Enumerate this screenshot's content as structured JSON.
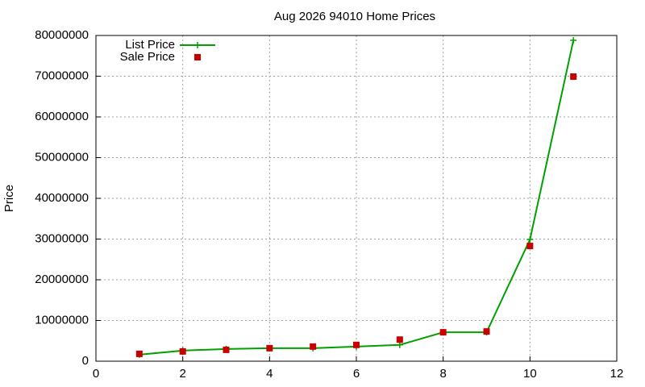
{
  "chart_data": {
    "type": "line",
    "title": "Aug 2026 94010 Home Prices",
    "y_label": "Price",
    "x": [
      1,
      2,
      3,
      4,
      5,
      6,
      7,
      8,
      9,
      10,
      11
    ],
    "series": [
      {
        "name": "List Price",
        "color": "#00a000",
        "style": "linespoints",
        "values": [
          1600000,
          2600000,
          3000000,
          3200000,
          3200000,
          3600000,
          4000000,
          7100000,
          7100000,
          29900000,
          78800000
        ]
      },
      {
        "name": "Sale Price",
        "color": "#c80000",
        "style": "points",
        "values": [
          1800000,
          2400000,
          2800000,
          3200000,
          3600000,
          4000000,
          5300000,
          7100000,
          7300000,
          28300000,
          69900000
        ]
      }
    ],
    "xlim": [
      0,
      12
    ],
    "xticks": [
      0,
      2,
      4,
      6,
      8,
      10,
      12
    ],
    "ylim": [
      0,
      80000000
    ],
    "yticks": [
      0,
      10000000,
      20000000,
      30000000,
      40000000,
      50000000,
      60000000,
      70000000,
      80000000
    ],
    "grid": true,
    "legend": "top-left"
  }
}
